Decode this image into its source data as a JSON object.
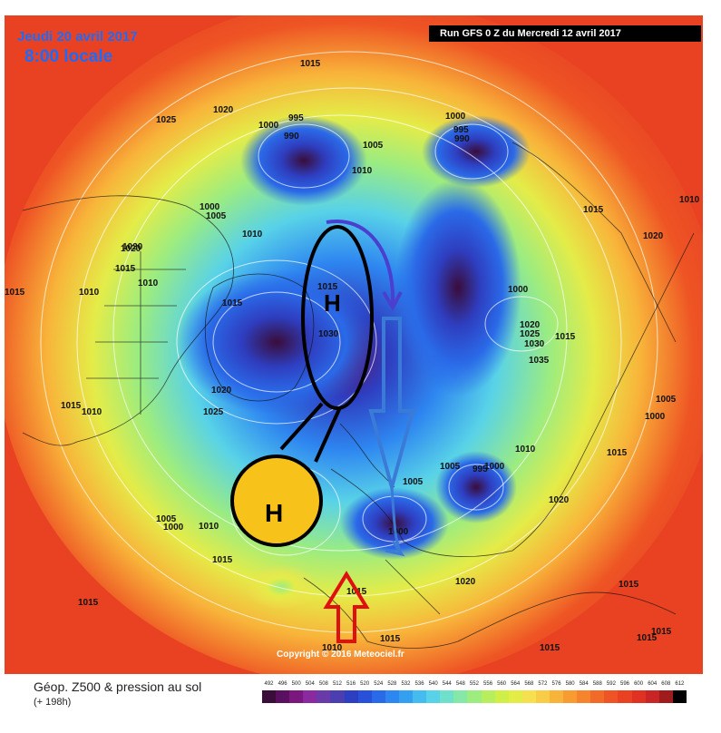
{
  "header": {
    "date": "Jeudi 20 avril 2017",
    "time": "8:00 locale",
    "run": "Run GFS 0 Z du Mercredi 12 avril 2017"
  },
  "map": {
    "copyright": "Copyright © 2016 Meteociel.fr",
    "high_label": "H",
    "pressure_labels": [
      {
        "id": "p1",
        "text": "1015"
      },
      {
        "id": "p2",
        "text": "1020"
      },
      {
        "id": "p3",
        "text": "1025"
      },
      {
        "id": "p4",
        "text": "1020"
      },
      {
        "id": "p5",
        "text": "995"
      },
      {
        "id": "p6",
        "text": "1000"
      },
      {
        "id": "p7",
        "text": "990"
      },
      {
        "id": "p8",
        "text": "1000"
      },
      {
        "id": "p9",
        "text": "995"
      },
      {
        "id": "p10",
        "text": "990"
      },
      {
        "id": "p11",
        "text": "1005"
      },
      {
        "id": "p12",
        "text": "1010"
      },
      {
        "id": "p13",
        "text": "1000"
      },
      {
        "id": "p14",
        "text": "1005"
      },
      {
        "id": "p15",
        "text": "1010"
      },
      {
        "id": "p16",
        "text": "1015"
      },
      {
        "id": "p17",
        "text": "1020"
      },
      {
        "id": "p18",
        "text": "1015"
      },
      {
        "id": "p19",
        "text": "1010"
      },
      {
        "id": "p20",
        "text": "1010"
      },
      {
        "id": "p21",
        "text": "1015"
      },
      {
        "id": "p22",
        "text": "1015"
      },
      {
        "id": "p23",
        "text": "1030"
      },
      {
        "id": "p24",
        "text": "1020"
      },
      {
        "id": "p25",
        "text": "1025"
      },
      {
        "id": "p26",
        "text": "1015"
      },
      {
        "id": "p27",
        "text": "1010"
      },
      {
        "id": "p28",
        "text": "1030"
      },
      {
        "id": "p29",
        "text": "1005"
      },
      {
        "id": "p30",
        "text": "1000"
      },
      {
        "id": "p31",
        "text": "1010"
      },
      {
        "id": "p32",
        "text": "1015"
      },
      {
        "id": "p33",
        "text": "1015"
      },
      {
        "id": "p34",
        "text": "1015"
      },
      {
        "id": "p35",
        "text": "1000"
      },
      {
        "id": "p36",
        "text": "1005"
      },
      {
        "id": "p37",
        "text": "1020"
      },
      {
        "id": "p38",
        "text": "1025"
      },
      {
        "id": "p39",
        "text": "1030"
      },
      {
        "id": "p40",
        "text": "1035"
      },
      {
        "id": "p41",
        "text": "1015"
      },
      {
        "id": "p42",
        "text": "1020"
      },
      {
        "id": "p43",
        "text": "1015"
      },
      {
        "id": "p44",
        "text": "1010"
      },
      {
        "id": "p45",
        "text": "1005"
      },
      {
        "id": "p46",
        "text": "1000"
      },
      {
        "id": "p47",
        "text": "1015"
      },
      {
        "id": "p48",
        "text": "1010"
      },
      {
        "id": "p49",
        "text": "1005"
      },
      {
        "id": "p50",
        "text": "995"
      },
      {
        "id": "p51",
        "text": "1000"
      },
      {
        "id": "p52",
        "text": "1020"
      },
      {
        "id": "p53",
        "text": "1020"
      },
      {
        "id": "p54",
        "text": "1015"
      },
      {
        "id": "p55",
        "text": "1015"
      },
      {
        "id": "p56",
        "text": "1015"
      },
      {
        "id": "p57",
        "text": "1015"
      },
      {
        "id": "p58",
        "text": "1010"
      },
      {
        "id": "p59",
        "text": "1015"
      },
      {
        "id": "p60",
        "text": "1000"
      }
    ],
    "colors": {
      "annotation_black": "#000000",
      "arrow_red": "#e01010",
      "arrow_blue": "#3b7bd8",
      "arrow_purple": "#4b3fd0",
      "high_fill": "#f7c21a"
    }
  },
  "legend": {
    "title": "Géop. Z500 & pression au sol",
    "subtitle": "(+ 198h)",
    "values": [
      "492",
      "496",
      "500",
      "504",
      "508",
      "512",
      "516",
      "520",
      "524",
      "528",
      "532",
      "536",
      "540",
      "544",
      "548",
      "552",
      "556",
      "560",
      "564",
      "568",
      "572",
      "576",
      "580",
      "584",
      "588",
      "592",
      "596",
      "600",
      "604",
      "608",
      "612"
    ],
    "colors": [
      "#3a0d3a",
      "#5a1060",
      "#7a1880",
      "#8a2aa0",
      "#6a3aa8",
      "#4a3eb0",
      "#2e3ec0",
      "#2850d8",
      "#2a6ae8",
      "#2e86f0",
      "#33a0f2",
      "#44bcf0",
      "#58d2e8",
      "#6ee0cc",
      "#86e8a6",
      "#9cec80",
      "#b6ee5e",
      "#cfee48",
      "#e4ec48",
      "#f4e050",
      "#f8cc46",
      "#f8b43a",
      "#f89c32",
      "#f6842c",
      "#f26a28",
      "#ee5424",
      "#e84222",
      "#e03222",
      "#c82626",
      "#a01c1c",
      "#000000"
    ]
  }
}
